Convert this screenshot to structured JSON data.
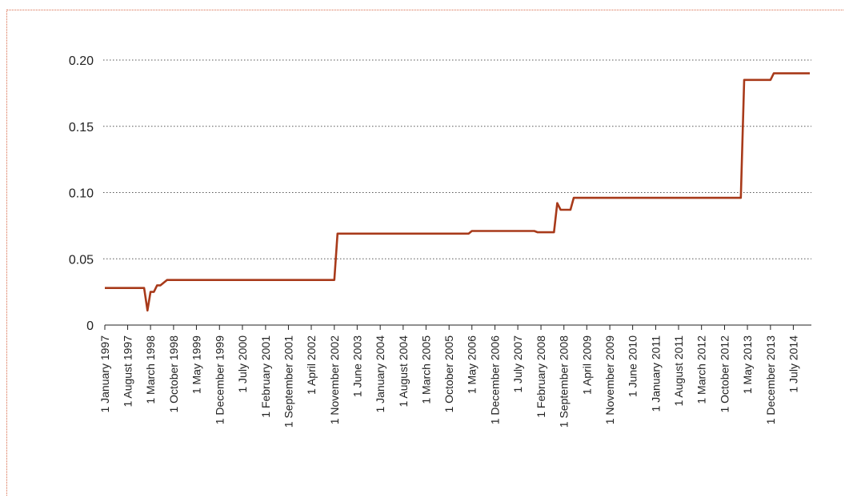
{
  "chart_data": {
    "type": "line",
    "title": "",
    "xlabel": "",
    "ylabel": "",
    "ylim": [
      0,
      0.2
    ],
    "grid": true,
    "legend": "none",
    "line_color": "#a83a1a",
    "y_ticks": [
      "0",
      "0.05",
      "0.10",
      "0.15",
      "0.20"
    ],
    "y_tick_values": [
      0,
      0.05,
      0.1,
      0.15,
      0.2
    ],
    "x_tick_labels": [
      "1 January 1997",
      "1 August 1997",
      "1 March 1998",
      "1 October 1998",
      "1 May 1999",
      "1 December 1999",
      "1 July 2000",
      "1 February 2001",
      "1 September 2001",
      "1 April 2002",
      "1 November 2002",
      "1 June 2003",
      "1 January 2004",
      "1 August 2004",
      "1 March 2005",
      "1 October 2005",
      "1 May 2006",
      "1 December 2006",
      "1 July 2007",
      "1 February 2008",
      "1 September 2008",
      "1 April 2009",
      "1 November 2009",
      "1 June 2010",
      "1 January 2011",
      "1 August 2011",
      "1 March 2012",
      "1 October 2012",
      "1 May 2013",
      "1 December 2013",
      "1 July 2014"
    ],
    "x_tick_dates": [
      "1997-01-01",
      "1997-08-01",
      "1998-03-01",
      "1998-10-01",
      "1999-05-01",
      "1999-12-01",
      "2000-07-01",
      "2001-02-01",
      "2001-09-01",
      "2002-04-01",
      "2002-11-01",
      "2003-06-01",
      "2004-01-01",
      "2004-08-01",
      "2005-03-01",
      "2005-10-01",
      "2006-05-01",
      "2006-12-01",
      "2007-07-01",
      "2008-02-01",
      "2008-09-01",
      "2009-04-01",
      "2009-11-01",
      "2010-06-01",
      "2011-01-01",
      "2011-08-01",
      "2012-03-01",
      "2012-10-01",
      "2013-05-01",
      "2013-12-01",
      "2014-07-01"
    ],
    "xlim": [
      "1997-01-01",
      "2014-12-01"
    ],
    "series": [
      {
        "x": [
          "1997-01-01",
          "1998-01-01",
          "1998-02-01",
          "1998-03-01",
          "1998-04-01",
          "1998-05-01",
          "1998-06-01",
          "1998-08-01",
          "1998-09-01",
          "2002-11-01",
          "2002-12-01",
          "2006-04-01",
          "2006-05-01",
          "2007-12-01",
          "2008-01-01",
          "2008-06-01",
          "2008-07-01",
          "2008-08-01",
          "2008-11-01",
          "2008-12-01",
          "2013-03-01",
          "2013-04-01",
          "2013-12-01",
          "2014-01-01",
          "2014-12-01"
        ],
        "values": [
          0.028,
          0.028,
          0.011,
          0.025,
          0.025,
          0.03,
          0.03,
          0.034,
          0.034,
          0.034,
          0.069,
          0.069,
          0.071,
          0.071,
          0.07,
          0.07,
          0.092,
          0.087,
          0.087,
          0.096,
          0.096,
          0.185,
          0.185,
          0.19,
          0.19
        ]
      }
    ]
  }
}
